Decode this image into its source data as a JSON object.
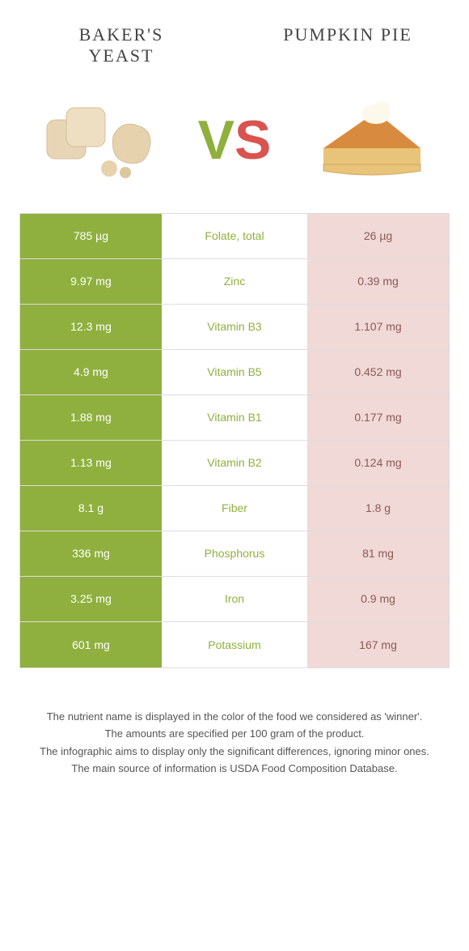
{
  "header": {
    "left_title": "BAKER'S YEAST",
    "right_title": "PUMPKIN PIE"
  },
  "vs": {
    "v_color": "#8fb03e",
    "s_color": "#d9534f"
  },
  "colors": {
    "left_win": "#8fb03e",
    "right_win": "#d9534f",
    "left_lose": "#f0d9d7",
    "right_lose": "#f0d9d7",
    "mid_text_left": "#8fb03e",
    "mid_text_right": "#d9534f"
  },
  "rows": [
    {
      "nutrient": "Folate, total",
      "left": "785 µg",
      "right": "26 µg",
      "winner": "left"
    },
    {
      "nutrient": "Zinc",
      "left": "9.97 mg",
      "right": "0.39 mg",
      "winner": "left"
    },
    {
      "nutrient": "Vitamin B3",
      "left": "12.3 mg",
      "right": "1.107 mg",
      "winner": "left"
    },
    {
      "nutrient": "Vitamin B5",
      "left": "4.9 mg",
      "right": "0.452 mg",
      "winner": "left"
    },
    {
      "nutrient": "Vitamin B1",
      "left": "1.88 mg",
      "right": "0.177 mg",
      "winner": "left"
    },
    {
      "nutrient": "Vitamin B2",
      "left": "1.13 mg",
      "right": "0.124 mg",
      "winner": "left"
    },
    {
      "nutrient": "Fiber",
      "left": "8.1 g",
      "right": "1.8 g",
      "winner": "left"
    },
    {
      "nutrient": "Phosphorus",
      "left": "336 mg",
      "right": "81 mg",
      "winner": "left"
    },
    {
      "nutrient": "Iron",
      "left": "3.25 mg",
      "right": "0.9 mg",
      "winner": "left"
    },
    {
      "nutrient": "Potassium",
      "left": "601 mg",
      "right": "167 mg",
      "winner": "left"
    }
  ],
  "footer": {
    "line1": "The nutrient name is displayed in the color of the food we considered as 'winner'.",
    "line2": "The amounts are specified per 100 gram of the product.",
    "line3": "The infographic aims to display only the significant differences, ignoring minor ones.",
    "line4": "The main source of information is USDA Food Composition Database."
  }
}
